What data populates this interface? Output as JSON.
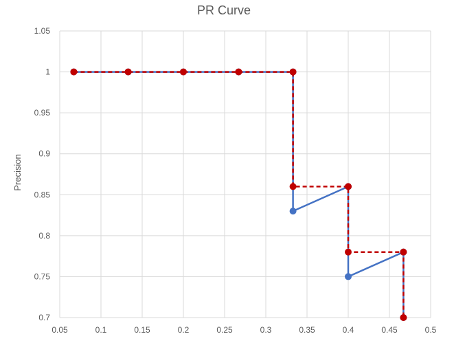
{
  "chart_data": {
    "type": "line",
    "title": "PR Curve",
    "xlabel": "",
    "ylabel": "Precision",
    "xlim": [
      0.05,
      0.5
    ],
    "ylim": [
      0.7,
      1.05
    ],
    "xticks": [
      "0.05",
      "0.1",
      "0.15",
      "0.2",
      "0.25",
      "0.3",
      "0.35",
      "0.4",
      "0.45",
      "0.5"
    ],
    "yticks": [
      "0.7",
      "0.75",
      "0.8",
      "0.85",
      "0.9",
      "0.95",
      "1",
      "1.05"
    ],
    "grid": true,
    "legend": false,
    "series": [
      {
        "color": "#4472C4",
        "style": "solid",
        "points": [
          {
            "x": 0.067,
            "y": 1.0
          },
          {
            "x": 0.133,
            "y": 1.0
          },
          {
            "x": 0.2,
            "y": 1.0
          },
          {
            "x": 0.267,
            "y": 1.0
          },
          {
            "x": 0.333,
            "y": 1.0
          },
          {
            "x": 0.333,
            "y": 0.83
          },
          {
            "x": 0.4,
            "y": 0.86
          },
          {
            "x": 0.4,
            "y": 0.75
          },
          {
            "x": 0.467,
            "y": 0.78
          },
          {
            "x": 0.467,
            "y": 0.7
          }
        ]
      },
      {
        "color": "#C00000",
        "style": "dashed",
        "points": [
          {
            "x": 0.067,
            "y": 1.0
          },
          {
            "x": 0.133,
            "y": 1.0
          },
          {
            "x": 0.2,
            "y": 1.0
          },
          {
            "x": 0.267,
            "y": 1.0
          },
          {
            "x": 0.333,
            "y": 1.0
          },
          {
            "x": 0.333,
            "y": 0.86
          },
          {
            "x": 0.4,
            "y": 0.86
          },
          {
            "x": 0.4,
            "y": 0.78
          },
          {
            "x": 0.467,
            "y": 0.78
          },
          {
            "x": 0.467,
            "y": 0.7
          }
        ]
      }
    ]
  },
  "colors": {
    "gridline": "#D9D9D9",
    "text": "#595959"
  }
}
